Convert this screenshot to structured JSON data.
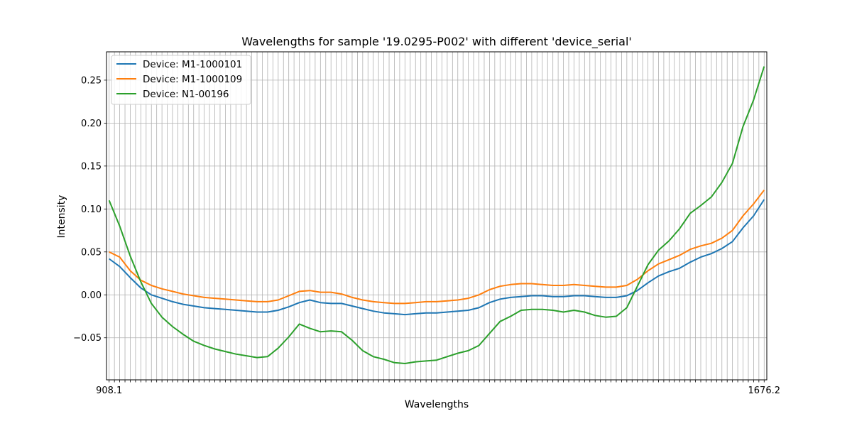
{
  "chart_data": {
    "type": "line",
    "title": "Wavelengths for sample '19.0295-P002' with different 'device_serial'",
    "xlabel": "Wavelengths",
    "ylabel": "Intensity",
    "x_tick_first": "908.1",
    "x_tick_last": "1676.2",
    "x_tick_count": 125,
    "xlim": [
      -0.5,
      124.5
    ],
    "ylim": [
      -0.099,
      0.283
    ],
    "y_ticks": [
      -0.05,
      0.0,
      0.05,
      0.1,
      0.15,
      0.2,
      0.25
    ],
    "y_tick_labels": [
      "−0.05",
      "0.00",
      "0.05",
      "0.10",
      "0.15",
      "0.20",
      "0.25"
    ],
    "grid": true,
    "legend_position": "upper-left",
    "x": [
      0,
      2,
      4,
      6,
      8,
      10,
      12,
      14,
      16,
      18,
      20,
      22,
      24,
      26,
      28,
      30,
      32,
      34,
      36,
      38,
      40,
      42,
      44,
      46,
      48,
      50,
      52,
      54,
      56,
      58,
      60,
      62,
      64,
      66,
      68,
      70,
      72,
      74,
      76,
      78,
      80,
      82,
      84,
      86,
      88,
      90,
      92,
      94,
      96,
      98,
      100,
      102,
      104,
      106,
      108,
      110,
      112,
      114,
      116,
      118,
      120,
      122,
      124
    ],
    "series": [
      {
        "name": "Device: M1-1000101",
        "color": "#1f77b4",
        "values": [
          0.042,
          0.033,
          0.02,
          0.008,
          0.0,
          -0.004,
          -0.008,
          -0.011,
          -0.013,
          -0.015,
          -0.016,
          -0.017,
          -0.018,
          -0.019,
          -0.02,
          -0.02,
          -0.018,
          -0.014,
          -0.009,
          -0.006,
          -0.009,
          -0.01,
          -0.01,
          -0.013,
          -0.016,
          -0.019,
          -0.021,
          -0.022,
          -0.023,
          -0.022,
          -0.021,
          -0.021,
          -0.02,
          -0.019,
          -0.018,
          -0.015,
          -0.009,
          -0.005,
          -0.003,
          -0.002,
          -0.001,
          -0.001,
          -0.002,
          -0.002,
          -0.001,
          -0.001,
          -0.002,
          -0.003,
          -0.003,
          -0.001,
          0.005,
          0.014,
          0.022,
          0.027,
          0.031,
          0.038,
          0.044,
          0.048,
          0.054,
          0.062,
          0.078,
          0.092,
          0.111
        ]
      },
      {
        "name": "Device: M1-1000109",
        "color": "#ff7f0e",
        "values": [
          0.05,
          0.044,
          0.028,
          0.017,
          0.011,
          0.007,
          0.004,
          0.001,
          -0.001,
          -0.003,
          -0.004,
          -0.005,
          -0.006,
          -0.007,
          -0.008,
          -0.008,
          -0.006,
          -0.001,
          0.004,
          0.005,
          0.003,
          0.003,
          0.001,
          -0.003,
          -0.006,
          -0.008,
          -0.009,
          -0.01,
          -0.01,
          -0.009,
          -0.008,
          -0.008,
          -0.007,
          -0.006,
          -0.004,
          0.0,
          0.006,
          0.01,
          0.012,
          0.013,
          0.013,
          0.012,
          0.011,
          0.011,
          0.012,
          0.011,
          0.01,
          0.009,
          0.009,
          0.011,
          0.018,
          0.028,
          0.036,
          0.041,
          0.046,
          0.053,
          0.057,
          0.06,
          0.066,
          0.075,
          0.092,
          0.106,
          0.122
        ]
      },
      {
        "name": "Device: N1-00196",
        "color": "#2ca02c",
        "values": [
          0.11,
          0.08,
          0.045,
          0.015,
          -0.01,
          -0.026,
          -0.037,
          -0.046,
          -0.054,
          -0.059,
          -0.063,
          -0.066,
          -0.069,
          -0.071,
          -0.073,
          -0.072,
          -0.062,
          -0.049,
          -0.034,
          -0.039,
          -0.043,
          -0.042,
          -0.043,
          -0.053,
          -0.065,
          -0.072,
          -0.075,
          -0.079,
          -0.08,
          -0.078,
          -0.077,
          -0.076,
          -0.072,
          -0.068,
          -0.065,
          -0.059,
          -0.045,
          -0.031,
          -0.025,
          -0.018,
          -0.017,
          -0.017,
          -0.018,
          -0.02,
          -0.018,
          -0.02,
          -0.024,
          -0.026,
          -0.025,
          -0.015,
          0.01,
          0.035,
          0.052,
          0.063,
          0.077,
          0.095,
          0.104,
          0.114,
          0.131,
          0.153,
          0.196,
          0.227,
          0.266
        ]
      }
    ]
  }
}
